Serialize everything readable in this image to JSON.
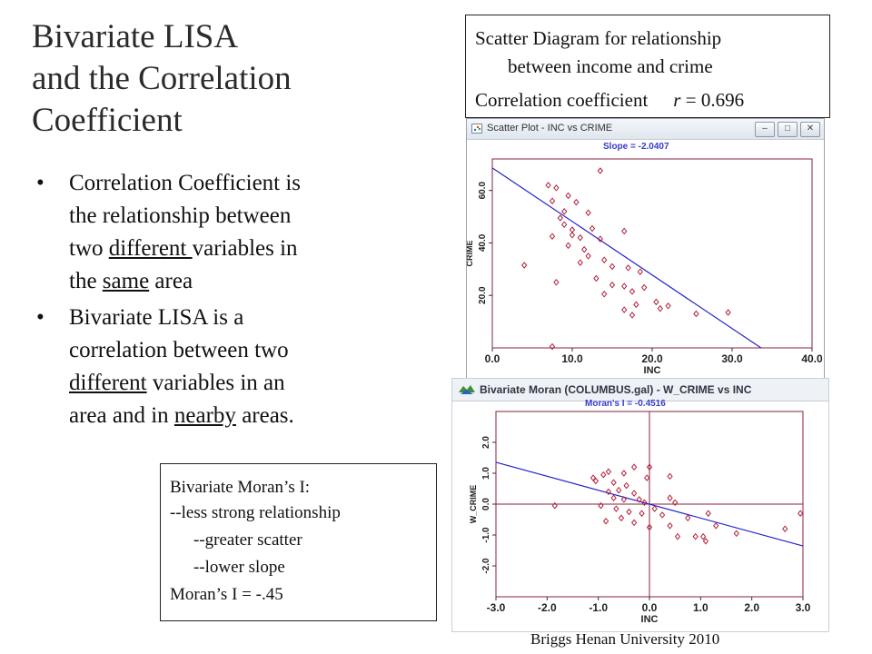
{
  "slide": {
    "title_lines": [
      "Bivariate LISA",
      "and the Correlation",
      "Coefficient"
    ],
    "bullet_dot": "•",
    "bullet1": [
      "Correlation Coefficient is",
      "the relationship between",
      "two ",
      "different ",
      "variables in",
      "the ",
      "same",
      " area"
    ],
    "bullet2": [
      "Bivariate LISA is a",
      "correlation between  two",
      "different",
      " variables in an",
      "area and in ",
      "nearby",
      " areas."
    ],
    "corr_box": {
      "line1": "Scatter Diagram for relationship",
      "line2": "between income and crime",
      "line3_label": "Correlation coefficient",
      "line3_var": "r",
      "line3_value": "= 0.696"
    },
    "moran_box": [
      "Bivariate Moran’s I:",
      "--less strong relationship",
      "--greater scatter",
      "--lower slope",
      "Moran’s I  =  -.45"
    ],
    "footer": "Briggs  Henan University 2010"
  },
  "window1": {
    "title": "Scatter Plot - INC vs CRIME",
    "caption": "Slope = -2.0407",
    "btn_min": "–",
    "btn_max": "□",
    "btn_close": "✕"
  },
  "window2": {
    "title": "Bivariate Moran (COLUMBUS.gal) - W_CRIME vs INC",
    "caption": "Moran's I = -0.4516"
  },
  "chart_data": [
    {
      "type": "scatter",
      "title": "Slope = -2.0407",
      "xlabel": "INC",
      "ylabel": "CRIME",
      "xlim": [
        0,
        40
      ],
      "ylim": [
        0,
        72
      ],
      "x_ticks": [
        "0.0",
        "10.0",
        "20.0",
        "30.0",
        "40.0"
      ],
      "y_ticks": [
        "20.0",
        "40.0",
        "60.0"
      ],
      "grid": false,
      "marker_color": "#b0223a",
      "line_color": "#2222cc",
      "regression": {
        "slope": -2.0407,
        "intercept": 68.6
      },
      "points": [
        [
          13.5,
          67.5
        ],
        [
          7.0,
          62.0
        ],
        [
          8.0,
          61.0
        ],
        [
          9.5,
          58.0
        ],
        [
          7.5,
          56.0
        ],
        [
          10.5,
          55.5
        ],
        [
          9.0,
          52.0
        ],
        [
          12.0,
          51.5
        ],
        [
          8.5,
          49.5
        ],
        [
          9.0,
          47.0
        ],
        [
          10.0,
          45.0
        ],
        [
          12.5,
          45.5
        ],
        [
          16.5,
          44.5
        ],
        [
          10.0,
          43.0
        ],
        [
          7.5,
          42.5
        ],
        [
          11.0,
          42.0
        ],
        [
          13.5,
          41.5
        ],
        [
          9.5,
          39.0
        ],
        [
          11.5,
          37.5
        ],
        [
          12.0,
          35.0
        ],
        [
          14.0,
          33.5
        ],
        [
          4.0,
          31.5
        ],
        [
          11.0,
          32.5
        ],
        [
          15.0,
          31.0
        ],
        [
          17.0,
          30.5
        ],
        [
          18.5,
          29.0
        ],
        [
          13.0,
          26.5
        ],
        [
          8.0,
          25.0
        ],
        [
          15.0,
          24.0
        ],
        [
          16.5,
          23.5
        ],
        [
          17.5,
          21.5
        ],
        [
          19.0,
          23.0
        ],
        [
          14.0,
          20.5
        ],
        [
          20.5,
          17.5
        ],
        [
          21.0,
          15.0
        ],
        [
          22.0,
          16.0
        ],
        [
          18.0,
          16.5
        ],
        [
          16.5,
          14.5
        ],
        [
          17.5,
          12.5
        ],
        [
          25.5,
          13.0
        ],
        [
          29.5,
          13.5
        ],
        [
          7.5,
          0.5
        ]
      ]
    },
    {
      "type": "scatter",
      "title": "Moran's I = -0.4516",
      "xlabel": "INC",
      "ylabel": "W_CRIME",
      "xlim": [
        -3.0,
        3.0
      ],
      "ylim": [
        -3.0,
        3.0
      ],
      "x_ticks": [
        "-3.0",
        "-2.0",
        "-1.0",
        "0.0",
        "1.0",
        "2.0",
        "3.0"
      ],
      "y_ticks": [
        "-2.0",
        "-1.0",
        "0.0",
        "1.0",
        "2.0"
      ],
      "grid": false,
      "marker_color": "#b0223a",
      "line_color": "#2222cc",
      "regression": {
        "slope": -0.4516,
        "intercept": 0.0
      },
      "points": [
        [
          -0.9,
          0.95
        ],
        [
          -1.1,
          0.85
        ],
        [
          -0.8,
          1.05
        ],
        [
          -1.05,
          0.75
        ],
        [
          -0.7,
          0.7
        ],
        [
          -0.5,
          1.0
        ],
        [
          -0.3,
          1.2
        ],
        [
          0.0,
          1.2
        ],
        [
          -0.05,
          0.85
        ],
        [
          0.4,
          0.9
        ],
        [
          0.4,
          0.2
        ],
        [
          0.5,
          0.05
        ],
        [
          -0.45,
          0.6
        ],
        [
          -0.6,
          0.45
        ],
        [
          -0.8,
          0.4
        ],
        [
          -0.7,
          0.2
        ],
        [
          -0.5,
          0.15
        ],
        [
          -0.3,
          0.35
        ],
        [
          -0.2,
          0.15
        ],
        [
          -0.1,
          0.05
        ],
        [
          -0.95,
          -0.05
        ],
        [
          -0.65,
          -0.15
        ],
        [
          -0.4,
          -0.25
        ],
        [
          -0.15,
          -0.3
        ],
        [
          0.1,
          -0.15
        ],
        [
          0.25,
          -0.35
        ],
        [
          -0.55,
          -0.45
        ],
        [
          -0.85,
          -0.55
        ],
        [
          -0.3,
          -0.6
        ],
        [
          0.0,
          -0.75
        ],
        [
          0.4,
          -0.7
        ],
        [
          0.75,
          -0.45
        ],
        [
          0.55,
          -1.05
        ],
        [
          0.9,
          -1.05
        ],
        [
          1.05,
          -1.05
        ],
        [
          1.1,
          -1.2
        ],
        [
          1.3,
          -0.7
        ],
        [
          1.7,
          -0.95
        ],
        [
          2.65,
          -0.8
        ],
        [
          2.95,
          -0.3
        ],
        [
          -1.85,
          -0.05
        ],
        [
          1.15,
          -0.3
        ]
      ]
    }
  ]
}
